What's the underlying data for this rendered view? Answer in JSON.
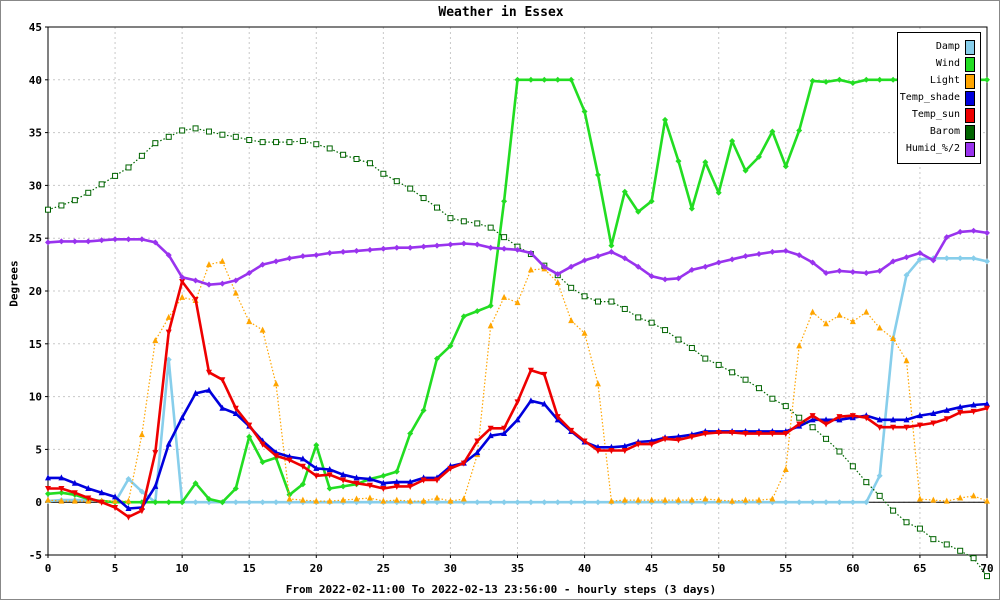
{
  "chart_data": {
    "type": "line",
    "title": "Weather in Essex",
    "xlabel": "From 2022-02-11:00 To 2022-02-13 23:56:00 - hourly steps (3 days)",
    "ylabel": "Degrees",
    "xlim": [
      0,
      70
    ],
    "ylim": [
      -5,
      45
    ],
    "x_ticks": [
      0,
      5,
      10,
      15,
      20,
      25,
      30,
      35,
      40,
      45,
      50,
      55,
      60,
      65,
      70
    ],
    "y_ticks": [
      -5,
      0,
      5,
      10,
      15,
      20,
      25,
      30,
      35,
      40,
      45
    ],
    "grid": true,
    "legend_position": "top-right",
    "series": [
      {
        "name": "Damp",
        "color": "#87ceeb",
        "marker": "diamond",
        "line": "solid",
        "values": [
          0.1,
          0.2,
          0.2,
          0.2,
          0.1,
          0,
          2.2,
          1.0,
          0,
          13.5,
          0,
          0,
          0,
          0,
          0,
          0,
          0,
          0,
          0,
          0,
          0,
          0,
          0,
          0,
          0,
          0,
          0,
          0,
          0,
          0,
          0,
          0,
          0,
          0,
          0,
          0,
          0,
          0,
          0,
          0,
          0,
          0,
          0,
          0,
          0,
          0,
          0,
          0,
          0,
          0,
          0,
          0,
          0,
          0,
          0,
          0,
          0,
          0,
          0,
          0,
          0,
          0,
          2.5,
          15.5,
          21.5,
          23.0,
          23.1,
          23.1,
          23.1,
          23.1,
          22.8
        ]
      },
      {
        "name": "Wind",
        "color": "#22dd22",
        "marker": "diamond",
        "line": "solid",
        "values": [
          0.8,
          0.9,
          0.7,
          0.3,
          0.1,
          0,
          0,
          0,
          0,
          0,
          0,
          1.8,
          0.3,
          0,
          1.3,
          6.2,
          3.8,
          4.2,
          0.7,
          1.7,
          5.4,
          1.3,
          1.5,
          1.7,
          2.2,
          2.5,
          2.9,
          6.5,
          8.7,
          13.6,
          14.8,
          17.6,
          18.1,
          18.6,
          28.5,
          40,
          40,
          40,
          40,
          40,
          37,
          31,
          24.3,
          29.4,
          27.5,
          28.5,
          36.2,
          32.3,
          27.8,
          32.2,
          29.3,
          34.2,
          31.4,
          32.7,
          35.1,
          31.8,
          35.2,
          39.9,
          39.8,
          40,
          39.7,
          40,
          40,
          40,
          40,
          40,
          40,
          40,
          40,
          40,
          40
        ]
      },
      {
        "name": "Light",
        "color": "#ffa500",
        "marker": "triangle",
        "line": "dotted",
        "values": [
          0.2,
          0.1,
          0.1,
          0.1,
          0.1,
          0.1,
          0.1,
          6.4,
          15.3,
          17.5,
          19.4,
          19.1,
          22.5,
          22.8,
          19.8,
          17.1,
          16.3,
          11.2,
          0.3,
          0.2,
          0.1,
          0.1,
          0.2,
          0.3,
          0.4,
          0.1,
          0.2,
          0.1,
          0.1,
          0.4,
          0.1,
          0.3,
          4.5,
          16.7,
          19.4,
          18.9,
          22.0,
          22.1,
          20.8,
          17.2,
          16.0,
          11.2,
          0.1,
          0.2,
          0.2,
          0.2,
          0.2,
          0.2,
          0.2,
          0.3,
          0.2,
          0.1,
          0.2,
          0.2,
          0.3,
          3.1,
          14.8,
          18.0,
          16.9,
          17.7,
          17.1,
          18.0,
          16.5,
          15.5,
          13.4,
          0.3,
          0.2,
          0.1,
          0.4,
          0.6,
          0.1
        ]
      },
      {
        "name": "Temp_shade",
        "color": "#0000dd",
        "marker": "triangle",
        "line": "solid",
        "values": [
          2.3,
          2.3,
          1.8,
          1.3,
          0.9,
          0.5,
          -0.6,
          -0.5,
          1.5,
          5.5,
          8.0,
          10.3,
          10.6,
          8.9,
          8.4,
          7.2,
          5.8,
          4.7,
          4.3,
          4.1,
          3.2,
          3.1,
          2.6,
          2.3,
          2.2,
          1.8,
          1.9,
          1.9,
          2.3,
          2.3,
          3.4,
          3.7,
          4.7,
          6.3,
          6.5,
          7.8,
          9.6,
          9.3,
          7.8,
          6.7,
          5.7,
          5.2,
          5.2,
          5.3,
          5.7,
          5.8,
          6.1,
          6.2,
          6.4,
          6.7,
          6.7,
          6.7,
          6.7,
          6.7,
          6.7,
          6.7,
          7.2,
          7.8,
          7.8,
          7.8,
          8.0,
          8.2,
          7.8,
          7.8,
          7.8,
          8.2,
          8.4,
          8.7,
          9.0,
          9.2,
          9.3
        ]
      },
      {
        "name": "Temp_sun",
        "color": "#ee0000",
        "marker": "triangle-down",
        "line": "solid",
        "values": [
          1.3,
          1.3,
          0.9,
          0.4,
          0,
          -0.5,
          -1.4,
          -0.8,
          4.7,
          16.1,
          20.9,
          19.2,
          12.3,
          11.6,
          8.9,
          7.3,
          5.5,
          4.4,
          4.0,
          3.4,
          2.5,
          2.6,
          2.1,
          1.8,
          1.6,
          1.3,
          1.5,
          1.5,
          2.1,
          2.1,
          3.2,
          3.7,
          5.8,
          7.0,
          7.0,
          9.5,
          12.5,
          12.1,
          8.1,
          6.8,
          5.8,
          4.9,
          4.9,
          4.9,
          5.5,
          5.5,
          6.0,
          5.9,
          6.2,
          6.5,
          6.6,
          6.6,
          6.5,
          6.5,
          6.5,
          6.5,
          7.4,
          8.2,
          7.4,
          8.1,
          8.2,
          8.0,
          7.1,
          7.1,
          7.1,
          7.3,
          7.5,
          7.9,
          8.5,
          8.6,
          8.9
        ]
      },
      {
        "name": "Barom",
        "color": "#006400",
        "marker": "square",
        "line": "dotted",
        "values": [
          27.7,
          28.1,
          28.6,
          29.3,
          30.1,
          30.9,
          31.7,
          32.8,
          34.0,
          34.6,
          35.2,
          35.4,
          35.1,
          34.8,
          34.6,
          34.3,
          34.1,
          34.1,
          34.1,
          34.2,
          33.9,
          33.5,
          32.9,
          32.5,
          32.1,
          31.1,
          30.4,
          29.7,
          28.8,
          27.9,
          26.9,
          26.6,
          26.4,
          26.0,
          25.1,
          24.2,
          23.5,
          22.4,
          21.5,
          20.3,
          19.5,
          19.0,
          19.0,
          18.3,
          17.5,
          17.0,
          16.3,
          15.4,
          14.6,
          13.6,
          13.0,
          12.3,
          11.6,
          10.8,
          9.8,
          9.1,
          8.0,
          7.1,
          6.0,
          4.8,
          3.4,
          1.9,
          0.6,
          -0.8,
          -1.9,
          -2.5,
          -3.5,
          -4.0,
          -4.6,
          -5.3,
          -7.0
        ]
      },
      {
        "name": "Humid_%/2",
        "color": "#9933ee",
        "marker": "diamond",
        "line": "solid",
        "values": [
          24.6,
          24.7,
          24.7,
          24.7,
          24.8,
          24.9,
          24.9,
          24.9,
          24.6,
          23.4,
          21.3,
          21.0,
          20.6,
          20.7,
          21.0,
          21.7,
          22.5,
          22.8,
          23.1,
          23.3,
          23.4,
          23.6,
          23.7,
          23.8,
          23.9,
          24.0,
          24.1,
          24.1,
          24.2,
          24.3,
          24.4,
          24.5,
          24.4,
          24.1,
          24.0,
          23.9,
          23.6,
          22.3,
          21.6,
          22.3,
          22.9,
          23.3,
          23.7,
          23.1,
          22.3,
          21.4,
          21.1,
          21.2,
          22.0,
          22.3,
          22.7,
          23.0,
          23.3,
          23.5,
          23.7,
          23.8,
          23.4,
          22.7,
          21.7,
          21.9,
          21.8,
          21.7,
          21.9,
          22.8,
          23.2,
          23.6,
          22.9,
          25.1,
          25.6,
          25.7,
          25.5
        ]
      }
    ]
  }
}
